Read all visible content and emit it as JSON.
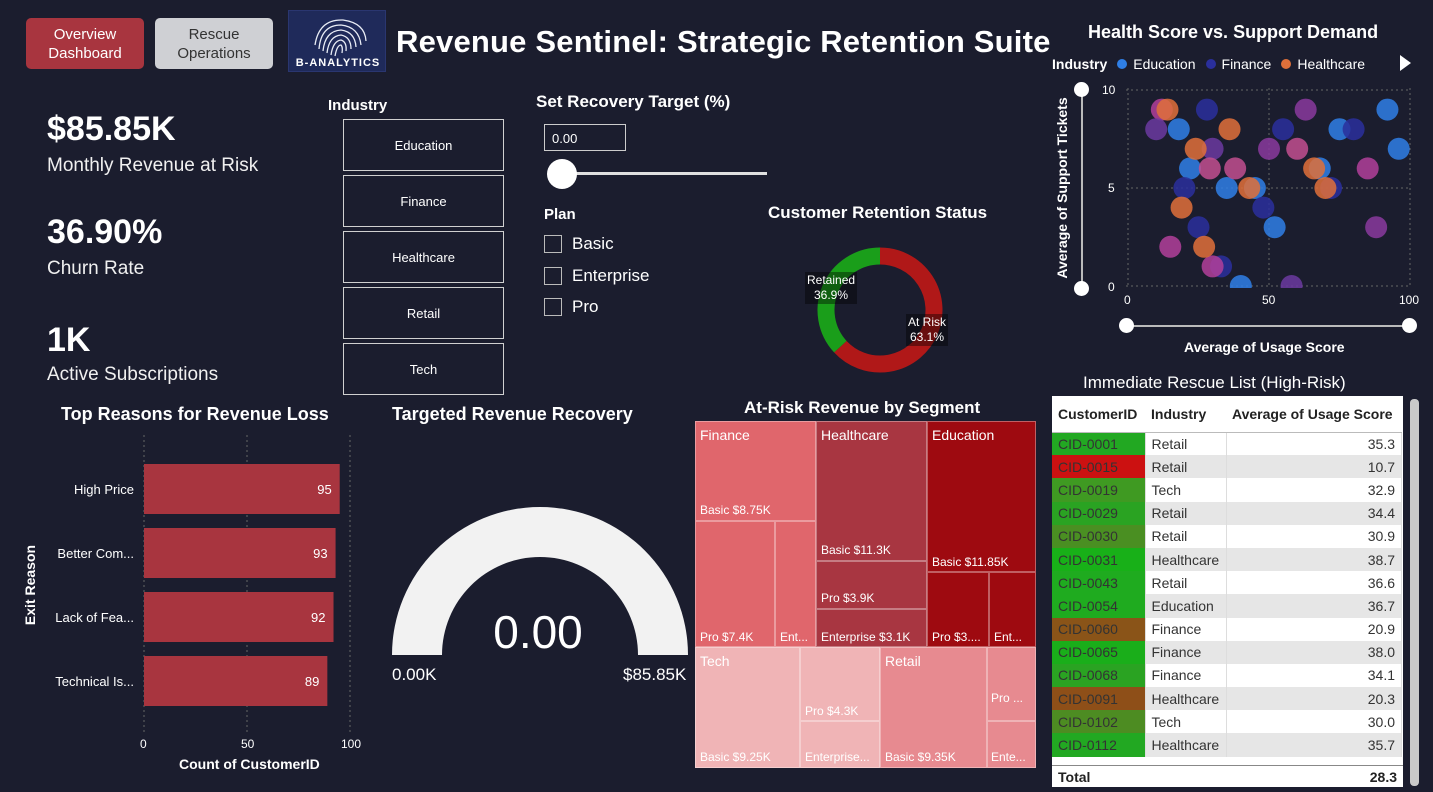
{
  "header": {
    "overview_btn": "Overview Dashboard",
    "rescue_btn": "Rescue Operations",
    "logo_text": "B-ANALYTICS",
    "title": "Revenue Sentinel: Strategic Retention Suite"
  },
  "kpis": [
    {
      "value": "$85.85K",
      "label": "Monthly Revenue at Risk"
    },
    {
      "value": "36.90%",
      "label": "Churn Rate"
    },
    {
      "value": "1K",
      "label": "Active Subscriptions"
    }
  ],
  "industry_slicer": {
    "title": "Industry",
    "items": [
      "Education",
      "Finance",
      "Healthcare",
      "Retail",
      "Tech"
    ]
  },
  "recovery": {
    "title": "Set Recovery Target (%)",
    "value": "0.00"
  },
  "plan": {
    "title": "Plan",
    "items": [
      "Basic",
      "Enterprise",
      "Pro"
    ]
  },
  "retention": {
    "title": "Customer Retention Status",
    "retained_label": "Retained",
    "retained_pct": "36.9%",
    "atrisk_label": "At Risk",
    "atrisk_pct": "63.1%",
    "colors": {
      "retained": "#1a9e1a",
      "atrisk": "#b01818"
    }
  },
  "scatter": {
    "title": "Health Score vs. Support Demand",
    "legend_title": "Industry",
    "legend": [
      {
        "name": "Education",
        "color": "#2f7fe6"
      },
      {
        "name": "Finance",
        "color": "#2a2f9c"
      },
      {
        "name": "Healthcare",
        "color": "#e0703a"
      }
    ],
    "xlabel": "Average of Usage Score",
    "ylabel": "Average of Support Tickets",
    "xticks": [
      "0",
      "50",
      "100"
    ],
    "yticks": [
      "10",
      "5",
      "0"
    ]
  },
  "reasons": {
    "title": "Top Reasons for Revenue Loss",
    "ylabel": "Exit Reason",
    "xlabel": "Count of CustomerID",
    "xticks": [
      "0",
      "50",
      "100"
    ]
  },
  "gauge": {
    "title": "Targeted Revenue Recovery",
    "value": "0.00",
    "min": "0.00K",
    "max": "$85.85K"
  },
  "treemap": {
    "title": "At-Risk Revenue by Segment",
    "groups": {
      "finance": {
        "name": "Finance",
        "basic": "Basic $8.75K",
        "pro": "Pro $7.4K",
        "ent": "Ent..."
      },
      "healthcare": {
        "name": "Healthcare",
        "basic": "Basic $11.3K",
        "pro": "Pro $3.9K",
        "ent": "Enterprise $3.1K"
      },
      "education": {
        "name": "Education",
        "basic": "Basic $11.85K",
        "pro": "Pro $3....",
        "ent": "Ent..."
      },
      "tech": {
        "name": "Tech",
        "basic": "Basic $9.25K",
        "pro": "Pro $4.3K",
        "ent": "Enterprise..."
      },
      "retail": {
        "name": "Retail",
        "basic": "Basic $9.35K",
        "pro": "Pro ...",
        "ent": "Ente..."
      }
    }
  },
  "rescue_table": {
    "title": "Immediate Rescue List (High-Risk)",
    "columns": [
      "CustomerID",
      "Industry",
      "Average of Usage Score"
    ],
    "rows": [
      {
        "id": "CID-0001",
        "industry": "Retail",
        "score": "35.3",
        "color": "#22a822"
      },
      {
        "id": "CID-0015",
        "industry": "Retail",
        "score": "10.7",
        "color": "#cc1111"
      },
      {
        "id": "CID-0019",
        "industry": "Tech",
        "score": "32.9",
        "color": "#3f9a22"
      },
      {
        "id": "CID-0029",
        "industry": "Retail",
        "score": "34.4",
        "color": "#2aa322"
      },
      {
        "id": "CID-0030",
        "industry": "Retail",
        "score": "30.9",
        "color": "#4a8f22"
      },
      {
        "id": "CID-0031",
        "industry": "Healthcare",
        "score": "38.7",
        "color": "#18b018"
      },
      {
        "id": "CID-0043",
        "industry": "Retail",
        "score": "36.6",
        "color": "#1fab1f"
      },
      {
        "id": "CID-0054",
        "industry": "Education",
        "score": "36.7",
        "color": "#1fab1f"
      },
      {
        "id": "CID-0060",
        "industry": "Finance",
        "score": "20.9",
        "color": "#8a5418"
      },
      {
        "id": "CID-0065",
        "industry": "Finance",
        "score": "38.0",
        "color": "#1aae1a"
      },
      {
        "id": "CID-0068",
        "industry": "Finance",
        "score": "34.1",
        "color": "#2aa322"
      },
      {
        "id": "CID-0091",
        "industry": "Healthcare",
        "score": "20.3",
        "color": "#8e4f18"
      },
      {
        "id": "CID-0102",
        "industry": "Tech",
        "score": "30.0",
        "color": "#4d8c22"
      },
      {
        "id": "CID-0112",
        "industry": "Healthcare",
        "score": "35.7",
        "color": "#22a822"
      }
    ],
    "total_label": "Total",
    "total_value": "28.3"
  },
  "chart_data": [
    {
      "type": "bar",
      "title": "Top Reasons for Revenue Loss",
      "categories": [
        "High Price",
        "Better Com...",
        "Lack of Fea...",
        "Technical Is..."
      ],
      "values": [
        95,
        93,
        92,
        89
      ],
      "xlabel": "Count of CustomerID",
      "ylabel": "Exit Reason",
      "xlim": [
        0,
        100
      ],
      "color": "#a8353f"
    },
    {
      "type": "pie",
      "title": "Customer Retention Status",
      "categories": [
        "Retained",
        "At Risk"
      ],
      "values": [
        36.9,
        63.1
      ]
    },
    {
      "type": "scatter",
      "title": "Health Score vs. Support Demand",
      "xlabel": "Average of Usage Score",
      "ylabel": "Average of Support Tickets",
      "xlim": [
        0,
        100
      ],
      "ylim": [
        0,
        10
      ],
      "series": [
        {
          "name": "Education",
          "x": [
            12,
            18,
            22,
            30,
            45,
            52,
            60,
            68,
            75,
            88,
            92,
            96,
            15,
            40,
            35
          ],
          "y": [
            9,
            8,
            6,
            7,
            5,
            3,
            7,
            6,
            8,
            3,
            9,
            7,
            2,
            0,
            5
          ]
        },
        {
          "name": "Finance",
          "x": [
            10,
            20,
            28,
            38,
            48,
            55,
            63,
            72,
            80,
            85,
            25,
            33,
            58
          ],
          "y": [
            8,
            5,
            9,
            6,
            4,
            8,
            9,
            5,
            8,
            6,
            3,
            1,
            0
          ]
        },
        {
          "name": "Healthcare",
          "x": [
            14,
            24,
            29,
            36,
            43,
            50,
            66,
            70,
            30,
            27,
            19
          ],
          "y": [
            9,
            7,
            6,
            8,
            5,
            7,
            6,
            5,
            1,
            2,
            4
          ]
        }
      ]
    }
  ]
}
